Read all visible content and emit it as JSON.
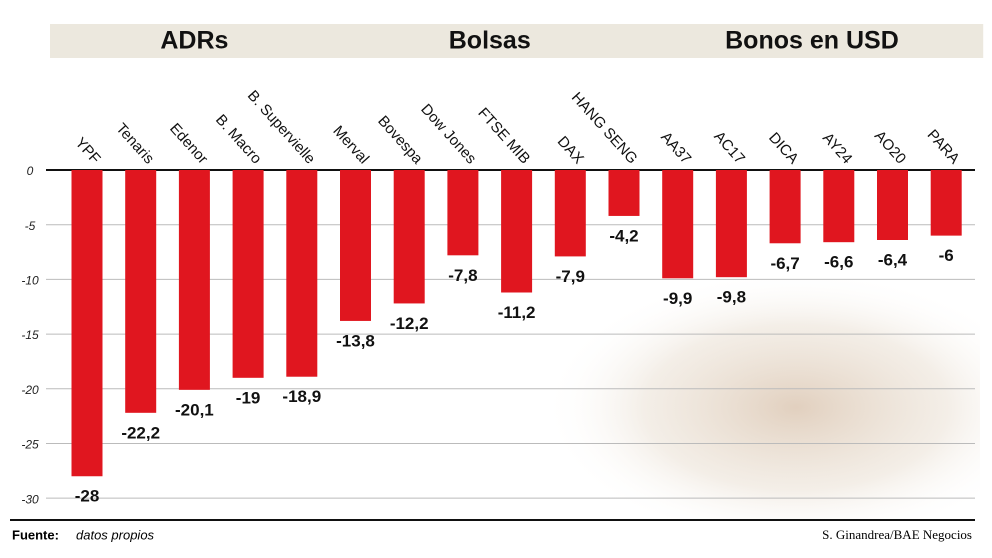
{
  "chart_data": {
    "type": "bar",
    "color": "#e0161f",
    "groups": [
      {
        "name": "ADRs",
        "categories": [
          "YPF",
          "Tenaris",
          "Edenor",
          "B. Macro",
          "B. Supervielle"
        ],
        "values": [
          -28,
          -22.2,
          -20.1,
          -19,
          -18.9
        ],
        "value_labels": [
          "-28",
          "-22,2",
          "-20,1",
          "-19",
          "-18,9"
        ]
      },
      {
        "name": "Bolsas",
        "categories": [
          "Merval",
          "Bovespa",
          "Dow Jones",
          "FTSE MIB",
          "DAX",
          "HANG SENG"
        ],
        "values": [
          -13.8,
          -12.2,
          -7.8,
          -11.2,
          -7.9,
          -4.2
        ],
        "value_labels": [
          "-13,8",
          "-12,2",
          "-7,8",
          "-11,2",
          "-7,9",
          "-4,2"
        ]
      },
      {
        "name": "Bonos en USD",
        "categories": [
          "AA37",
          "AC17",
          "DICA",
          "AY24",
          "AO20",
          "PARA"
        ],
        "values": [
          -9.9,
          -9.8,
          -6.7,
          -6.6,
          -6.4,
          -6
        ],
        "value_labels": [
          "-9,9",
          "-9,8",
          "-6,7",
          "-6,6",
          "-6,4",
          "-6"
        ]
      }
    ],
    "ylim": [
      -32,
      0
    ],
    "yticks": [
      0,
      -5,
      -10,
      -15,
      -20,
      -25,
      -30
    ],
    "grid": true,
    "source_label": "Fuente:",
    "source": "datos propios",
    "credit": "S. Ginandrea/BAE Negocios"
  }
}
